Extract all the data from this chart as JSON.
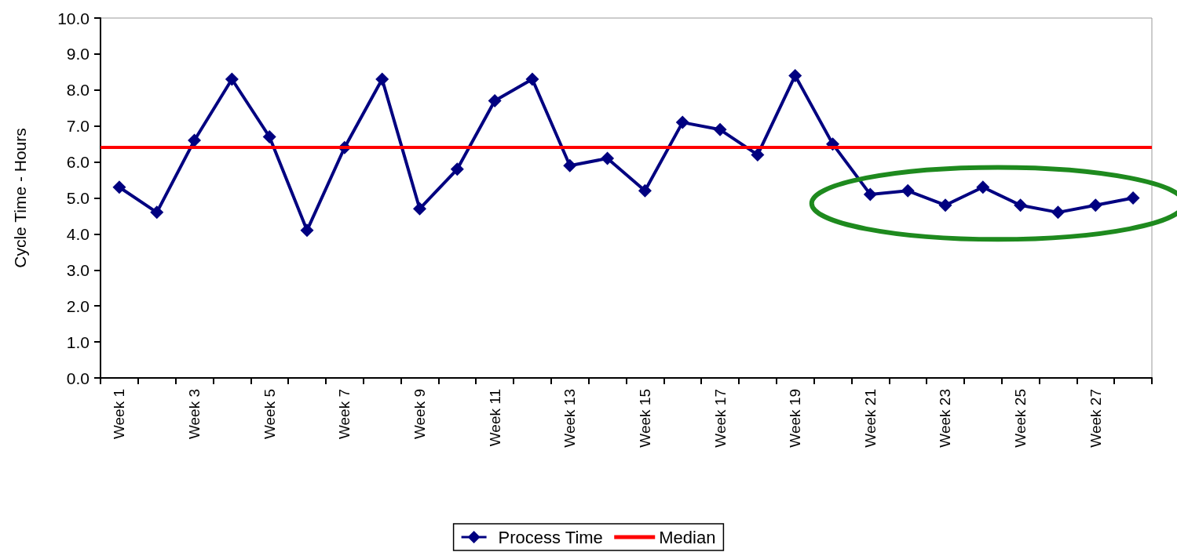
{
  "chart_data": {
    "type": "line",
    "ylabel": "Cycle Time - Hours",
    "categories": [
      "Week 1",
      null,
      "Week 3",
      null,
      "Week 5",
      null,
      "Week 7",
      null,
      "Week 9",
      null,
      "Week 11",
      null,
      "Week 13",
      null,
      "Week 15",
      null,
      "Week 17",
      null,
      "Week 19",
      null,
      "Week 21",
      null,
      "Week 23",
      null,
      "Week 25",
      null,
      "Week 27",
      null
    ],
    "series": [
      {
        "name": "Process Time",
        "color": "#000080",
        "values": [
          5.3,
          4.6,
          6.6,
          8.3,
          6.7,
          4.1,
          6.4,
          8.3,
          4.7,
          5.8,
          7.7,
          8.3,
          5.9,
          6.1,
          5.2,
          7.1,
          6.9,
          6.2,
          8.4,
          6.5,
          5.1,
          5.2,
          4.8,
          5.3,
          4.8,
          4.6,
          4.8,
          5.0
        ]
      }
    ],
    "ref_lines": [
      {
        "axis": "y",
        "value": 6.4,
        "label": "Median",
        "color": "#ff0000",
        "line_style": "solid"
      }
    ],
    "ylim": [
      0,
      10
    ],
    "yticks": [
      {
        "value": 0,
        "label": "0.0"
      },
      {
        "value": 1,
        "label": "1.0"
      },
      {
        "value": 2,
        "label": "2.0"
      },
      {
        "value": 3,
        "label": "3.0"
      },
      {
        "value": 4,
        "label": "4.0"
      },
      {
        "value": 5,
        "label": "5.0"
      },
      {
        "value": 6,
        "label": "6.0"
      },
      {
        "value": 7,
        "label": "7.0"
      },
      {
        "value": 8,
        "label": "8.0"
      },
      {
        "value": 9,
        "label": "9.0"
      },
      {
        "value": 10,
        "label": "10.0"
      }
    ],
    "marker": "diamond",
    "line_style": "solid",
    "grid": false,
    "legend": "bottom"
  }
}
